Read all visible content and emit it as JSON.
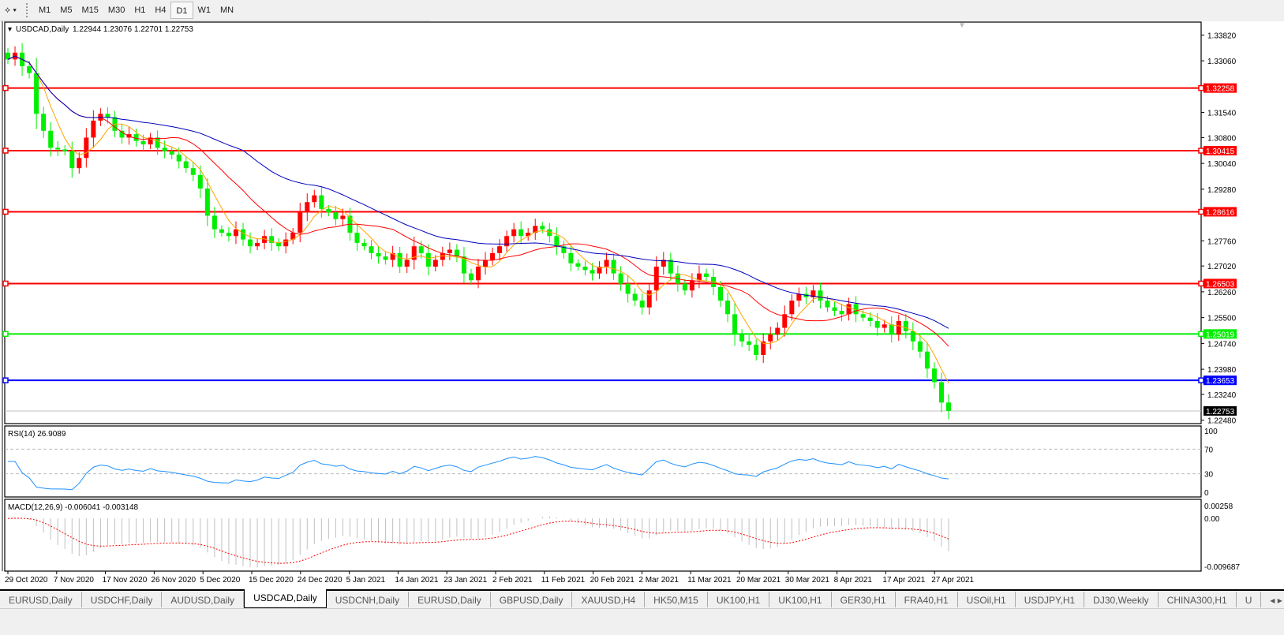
{
  "toolbar": {
    "timeframes": [
      "M1",
      "M5",
      "M15",
      "M30",
      "H1",
      "H4",
      "D1",
      "W1",
      "MN"
    ],
    "selected": "D1"
  },
  "chart_header": {
    "symbol": "USDCAD,Daily",
    "ohlc": "1.22944 1.23076 1.22701 1.22753"
  },
  "price_axis": {
    "ticks": [
      "1.33820",
      "1.33060",
      "1.31540",
      "1.30800",
      "1.30040",
      "1.29280",
      "1.27760",
      "1.27020",
      "1.26260",
      "1.25500",
      "1.24740",
      "1.23980",
      "1.23240",
      "1.22480"
    ]
  },
  "levels": [
    {
      "price": "1.32258",
      "color": "#ff0000"
    },
    {
      "price": "1.30415",
      "color": "#ff0000"
    },
    {
      "price": "1.28616",
      "color": "#ff0000"
    },
    {
      "price": "1.26503",
      "color": "#ff0000"
    },
    {
      "price": "1.25019",
      "color": "#00ee00"
    },
    {
      "price": "1.23653",
      "color": "#0000ff"
    }
  ],
  "current_price": "1.22753",
  "colors": {
    "bull": "#ff0000",
    "bear": "#00ee00",
    "ma_fast": "#ffa500",
    "ma_mid": "#ff0000",
    "ma_slow": "#0000c0",
    "rsi": "#1e90ff",
    "macd_hist": "#c0c0c0",
    "macd_signal": "#ff0000"
  },
  "chart_data": {
    "type": "candlestick",
    "closes": [
      1.331,
      1.333,
      1.329,
      1.327,
      1.315,
      1.31,
      1.305,
      1.3045,
      1.304,
      1.299,
      1.302,
      1.308,
      1.313,
      1.315,
      1.314,
      1.31,
      1.308,
      1.309,
      1.307,
      1.306,
      1.308,
      1.305,
      1.304,
      1.303,
      1.301,
      1.299,
      1.297,
      1.293,
      1.285,
      1.281,
      1.28,
      1.279,
      1.281,
      1.278,
      1.276,
      1.277,
      1.279,
      1.277,
      1.276,
      1.278,
      1.28,
      1.286,
      1.289,
      1.291,
      1.287,
      1.286,
      1.284,
      1.285,
      1.28,
      1.277,
      1.276,
      1.274,
      1.273,
      1.272,
      1.274,
      1.27,
      1.272,
      1.276,
      1.274,
      1.27,
      1.272,
      1.274,
      1.275,
      1.273,
      1.268,
      1.266,
      1.27,
      1.272,
      1.274,
      1.276,
      1.279,
      1.281,
      1.279,
      1.28,
      1.282,
      1.281,
      1.279,
      1.276,
      1.274,
      1.271,
      1.27,
      1.269,
      1.268,
      1.27,
      1.272,
      1.268,
      1.265,
      1.262,
      1.26,
      1.258,
      1.263,
      1.27,
      1.272,
      1.268,
      1.265,
      1.263,
      1.266,
      1.268,
      1.267,
      1.264,
      1.26,
      1.256,
      1.25,
      1.248,
      1.247,
      1.244,
      1.248,
      1.25,
      1.252,
      1.256,
      1.26,
      1.262,
      1.261,
      1.263,
      1.26,
      1.258,
      1.257,
      1.256,
      1.259,
      1.256,
      1.255,
      1.254,
      1.252,
      1.253,
      1.25,
      1.254,
      1.251,
      1.248,
      1.245,
      1.24,
      1.236,
      1.23,
      1.22753
    ],
    "ylim": [
      1.2238,
      1.342
    ],
    "date_labels": [
      "29 Oct 2020",
      "7 Nov 2020",
      "17 Nov 2020",
      "26 Nov 2020",
      "5 Dec 2020",
      "15 Dec 2020",
      "24 Dec 2020",
      "5 Jan 2021",
      "14 Jan 2021",
      "23 Jan 2021",
      "2 Feb 2021",
      "11 Feb 2021",
      "20 Feb 2021",
      "2 Mar 2021",
      "11 Mar 2021",
      "20 Mar 2021",
      "30 Mar 2021",
      "8 Apr 2021",
      "17 Apr 2021",
      "27 Apr 2021"
    ]
  },
  "rsi": {
    "label": "RSI(14) 26.9089",
    "ticks": [
      "100",
      "70",
      "30",
      "0"
    ]
  },
  "macd": {
    "label": "MACD(12,26,9) -0.006041 -0.003148",
    "ticks": [
      "0.00258",
      "0.00",
      "-0.009687"
    ]
  },
  "tabs": [
    "EURUSD,Daily",
    "USDCHF,Daily",
    "AUDUSD,Daily",
    "USDCAD,Daily",
    "USDCNH,Daily",
    "EURUSD,Daily",
    "GBPUSD,Daily",
    "XAUUSD,H4",
    "HK50,M15",
    "UK100,H1",
    "UK100,H1",
    "GER30,H1",
    "FRA40,H1",
    "USOil,H1",
    "USDJPY,H1",
    "DJ30,Weekly",
    "CHINA300,H1",
    "U"
  ],
  "active_tab": "USDCAD,Daily"
}
